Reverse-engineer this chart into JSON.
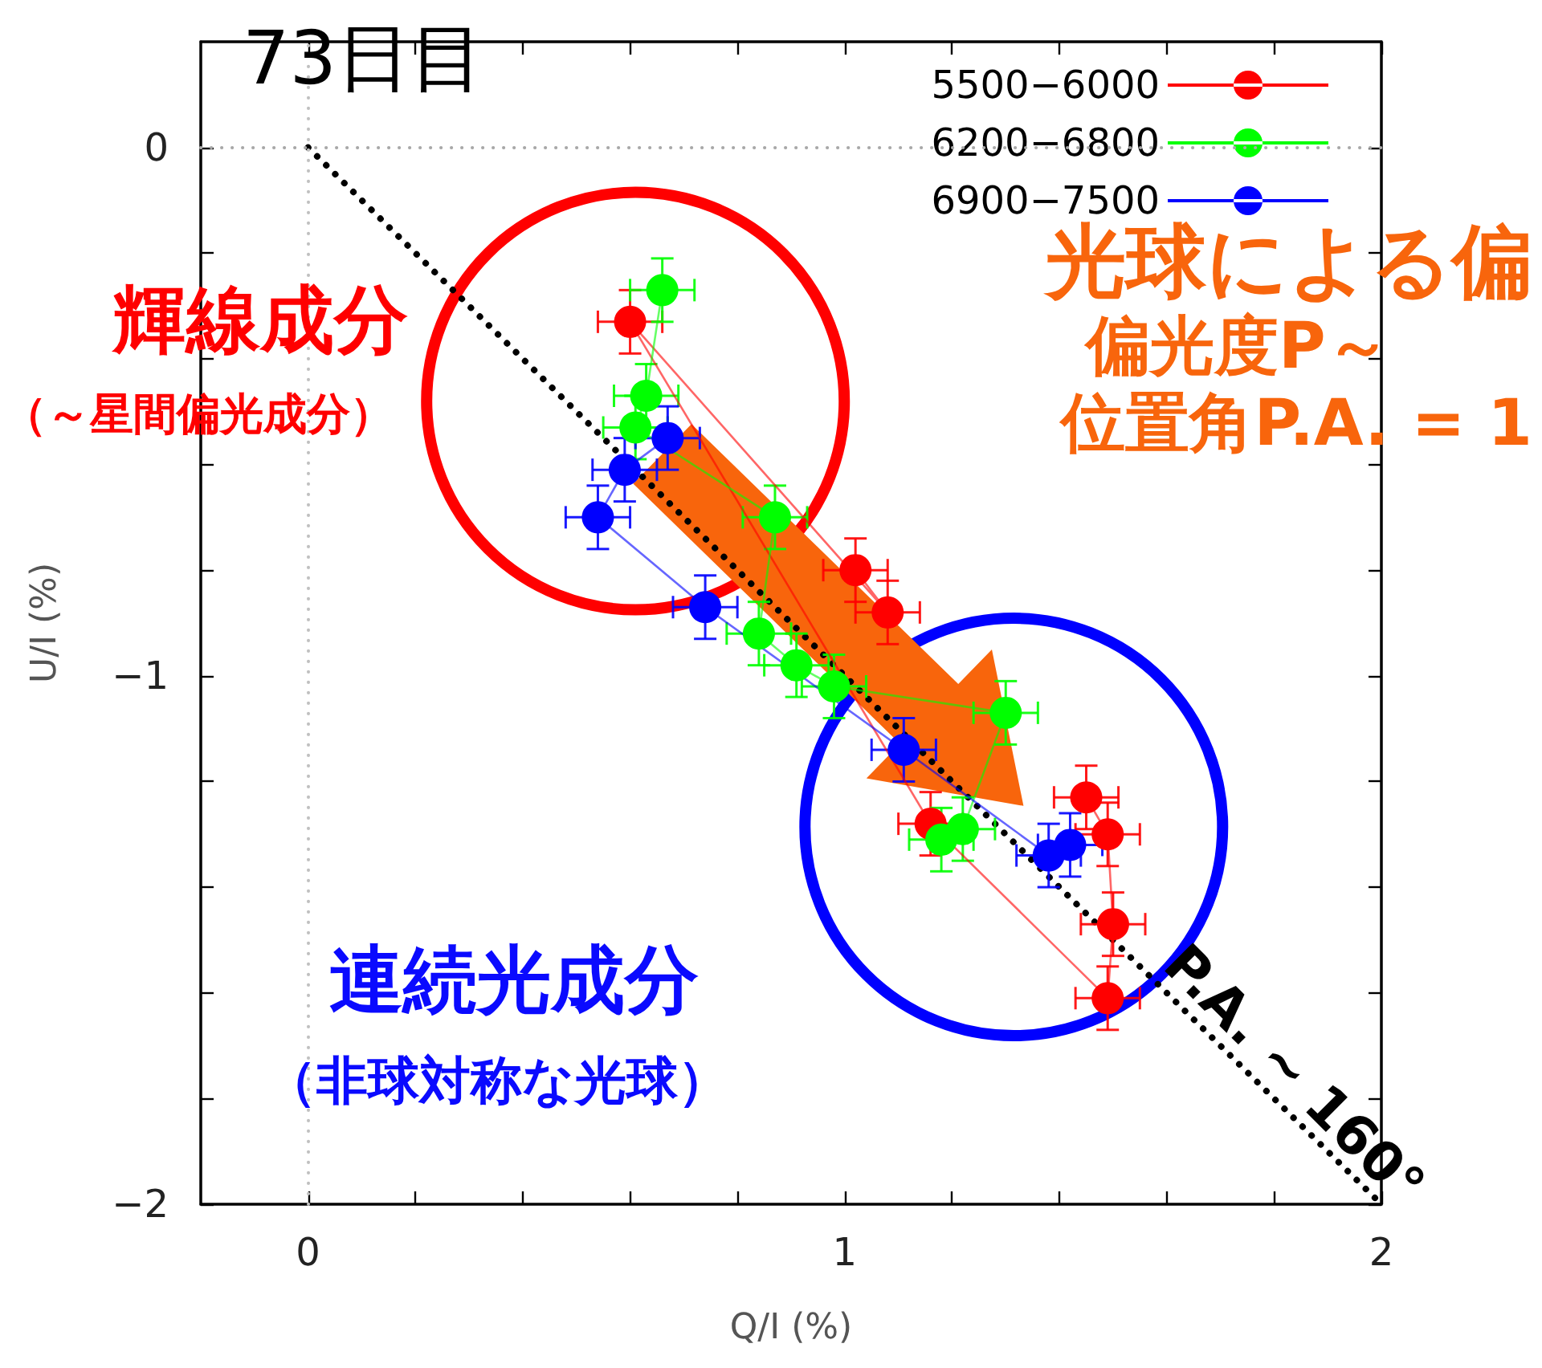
{
  "chart_data": {
    "type": "line",
    "title": "73日目",
    "xlabel": "Q/I (%)",
    "ylabel": "U/I (%)",
    "xlim": [
      -0.2,
      2
    ],
    "ylim": [
      -2,
      0.2
    ],
    "xticks": [
      0,
      {
        "value": 0.2,
        "label": null
      },
      {
        "value": 0.4,
        "label": null
      },
      {
        "value": 0.6,
        "label": null
      },
      {
        "value": 0.8,
        "label": null
      },
      1,
      {
        "value": 1.2,
        "label": null
      },
      {
        "value": 1.4,
        "label": null
      },
      {
        "value": 1.6,
        "label": null
      },
      {
        "value": 1.8,
        "label": null
      },
      2
    ],
    "yticks": [
      -2,
      {
        "value": -1.8,
        "label": null
      },
      {
        "value": -1.6,
        "label": null
      },
      {
        "value": -1.4,
        "label": null
      },
      {
        "value": -1.2,
        "label": null
      },
      -1,
      {
        "value": -0.8,
        "label": null
      },
      {
        "value": -0.6,
        "label": null
      },
      {
        "value": -0.4,
        "label": null
      },
      {
        "value": -0.2,
        "label": null
      },
      0
    ],
    "legend": "top right",
    "marker": "circle",
    "series": [
      {
        "name": "5500−6000",
        "color": "#ff0000",
        "x": [
          1.02,
          1.08,
          0.6,
          1.16,
          1.49,
          1.5,
          1.49,
          1.45
        ],
        "values": [
          -0.8,
          -0.88,
          -0.33,
          -1.28,
          -1.61,
          -1.47,
          -1.3,
          -1.23
        ],
        "errors": [
          0.06,
          0.06,
          0.06,
          0.06,
          0.06,
          0.06,
          0.06,
          0.06
        ],
        "xerrors": [
          0.06,
          0.06,
          0.06,
          0.06,
          0.06,
          0.06,
          0.06,
          0.06
        ]
      },
      {
        "name": "6200−6800",
        "color": "#00ff00",
        "x": [
          0.66,
          0.63,
          0.61,
          0.87,
          0.84,
          0.91,
          0.98,
          1.3,
          1.22,
          1.18
        ],
        "values": [
          -0.27,
          -0.47,
          -0.53,
          -0.7,
          -0.92,
          -0.98,
          -1.02,
          -1.07,
          -1.29,
          -1.31
        ],
        "errors": [
          0.06,
          0.06,
          0.06,
          0.06,
          0.06,
          0.06,
          0.06,
          0.06,
          0.06,
          0.06
        ],
        "xerrors": [
          0.06,
          0.06,
          0.06,
          0.06,
          0.06,
          0.06,
          0.06,
          0.06,
          0.06,
          0.06
        ]
      },
      {
        "name": "6900−7500",
        "color": "#0000ff",
        "x": [
          0.67,
          0.59,
          0.54,
          0.74,
          1.11,
          1.38,
          1.42
        ],
        "values": [
          -0.55,
          -0.61,
          -0.7,
          -0.87,
          -1.14,
          -1.34,
          -1.32
        ],
        "errors": [
          0.06,
          0.06,
          0.06,
          0.06,
          0.06,
          0.06,
          0.06
        ],
        "xerrors": [
          0.06,
          0.06,
          0.06,
          0.06,
          0.06,
          0.06,
          0.06
        ]
      },
      {
        "type": "line",
        "color": "#000000",
        "x": [
          0,
          2
        ],
        "values": [
          0,
          -2
        ],
        "marker": "none",
        "line_style": "dotted"
      }
    ],
    "ref_lines": [
      {
        "axis": "x",
        "value": 0,
        "color": "#c0c0c0",
        "line_style": "dotted"
      },
      {
        "axis": "y",
        "value": 0,
        "color": "#a8a8a8",
        "line_style": "dotted"
      }
    ],
    "annotations": [
      "輝線成分",
      "（～星間偏光成分）",
      "光球による偏",
      "偏光度P～",
      "位置角P.A. = 1",
      "連続光成分",
      "（非球対称な光球）",
      "P.A. ~ 160°"
    ]
  }
}
